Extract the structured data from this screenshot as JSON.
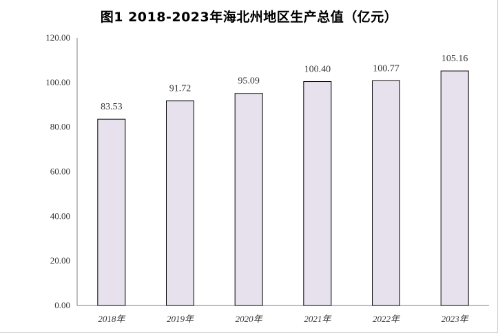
{
  "chart_data": {
    "type": "bar",
    "title": "图1 2018-2023年海北州地区生产总值（亿元）",
    "categories": [
      "2018年",
      "2019年",
      "2020年",
      "2021年",
      "2022年",
      "2023年"
    ],
    "values": [
      83.53,
      91.72,
      95.09,
      100.4,
      100.77,
      105.16
    ],
    "value_labels": [
      "83.53",
      "91.72",
      "95.09",
      "100.40",
      "100.77",
      "105.16"
    ],
    "y_ticks": [
      "0.00",
      "20.00",
      "40.00",
      "60.00",
      "80.00",
      "100.00",
      "120.00"
    ],
    "ylim": [
      0,
      120
    ],
    "xlabel": "",
    "ylabel": "",
    "grid": false,
    "colors": {
      "bar_fill": "#e6e1ec",
      "bar_stroke": "#000000",
      "axis": "#7f7f7f"
    }
  }
}
